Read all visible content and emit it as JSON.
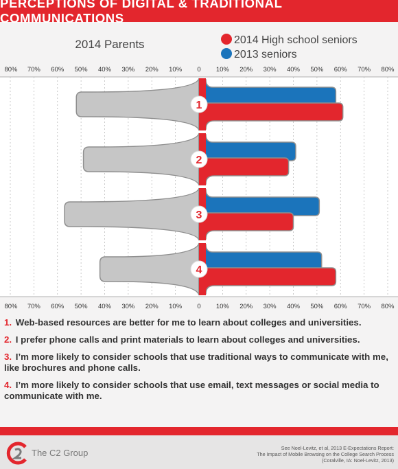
{
  "header": {
    "title": "PERCEPTIONS OF DIGITAL & TRADITIONAL COMMUNICATIONS"
  },
  "colors": {
    "accent": "#e3262d",
    "parents": "#c6c6c6",
    "seniors_2013": "#1b74bb",
    "seniors_2014": "#e3262d"
  },
  "chart_data": {
    "type": "bar",
    "orientation": "horizontal-diverging",
    "categories": [
      "1",
      "2",
      "3",
      "4"
    ],
    "series": [
      {
        "name": "2014 Parents",
        "side": "left",
        "values": [
          52,
          49,
          57,
          42
        ]
      },
      {
        "name": "2013 seniors",
        "side": "right",
        "values": [
          58,
          41,
          51,
          52
        ]
      },
      {
        "name": "2014 High school seniors",
        "side": "right",
        "values": [
          61,
          38,
          40,
          58
        ]
      }
    ],
    "tick_labels": [
      "80%",
      "70%",
      "60%",
      "50%",
      "40%",
      "30%",
      "20%",
      "10%",
      "0",
      "10%",
      "20%",
      "30%",
      "40%",
      "50%",
      "60%",
      "70%",
      "80%"
    ],
    "xlim": [
      -80,
      80
    ],
    "grid": true,
    "legend": {
      "parents_label": "2014 Parents",
      "seniors_2014_label": "2014 High school seniors",
      "seniors_2013_label": "2013 seniors"
    }
  },
  "notes": [
    {
      "num": "1.",
      "text": "Web-based resources are better for me to learn about colleges and  universities."
    },
    {
      "num": "2.",
      "text": "I prefer phone calls and print materials to learn about colleges and universities."
    },
    {
      "num": "3.",
      "text": "I’m more likely to consider schools that use traditional ways to communicate with me, like brochures and phone calls."
    },
    {
      "num": "4.",
      "text": "I’m more likely to consider schools that use email, text messages or social media to communicate with me."
    }
  ],
  "footer": {
    "company": "The C2 Group",
    "citation_line1": "See Noel-Levitz, et al, 2013 E-Expectations Report:",
    "citation_line2": "The Impact of Mobile Browsing on the College Search Process",
    "citation_line3": "(Coralville, IA: Noel-Levitz, 2013)"
  }
}
